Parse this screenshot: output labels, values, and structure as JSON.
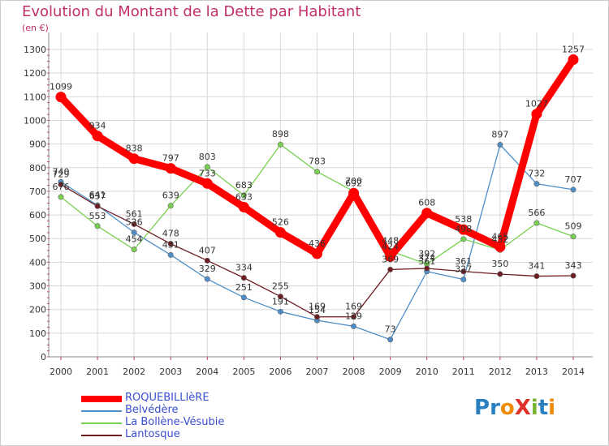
{
  "title": "Evolution du Montant de la Dette par Habitant",
  "unit_label": "(en €)",
  "logo": {
    "text": "ProXiti",
    "letters": [
      "P",
      "r",
      "o",
      "X",
      "i",
      "t",
      "i"
    ],
    "colors": [
      "#2a7fc0",
      "#2a7fc0",
      "#f08a00",
      "#e0302a",
      "#7ab32e",
      "#2a7fc0",
      "#f08a00"
    ]
  },
  "chart_data": {
    "type": "line",
    "title": "Evolution du Montant de la Dette par Habitant",
    "ylabel": "(en €)",
    "xlabel": "",
    "x": [
      "2000",
      "2001",
      "2002",
      "2003",
      "2004",
      "2005",
      "2006",
      "2007",
      "2008",
      "2009",
      "2010",
      "2011",
      "2012",
      "2013",
      "2014"
    ],
    "y_ticks": [
      "0",
      "100",
      "200",
      "300",
      "400",
      "500",
      "600",
      "700",
      "800",
      "900",
      "1000",
      "1100",
      "1200",
      "1300"
    ],
    "ylim": [
      0,
      1300
    ],
    "grid": true,
    "legend_position": "bottom-left",
    "series": [
      {
        "name": "ROQUEBILLIèRE",
        "color": "#ff0000",
        "values": [
          1099,
          934,
          838,
          797,
          733,
          633,
          526,
          436,
          692,
          424,
          608,
          538,
          465,
          1027,
          1257
        ],
        "labels": [
          "1099",
          "934",
          "838",
          "797",
          "733",
          "633",
          "526",
          "436",
          "692",
          "424",
          "608",
          "538",
          "465",
          "1027",
          "1257"
        ]
      },
      {
        "name": "Belvédère",
        "color": "#4d8ec8",
        "values": [
          740,
          641,
          526,
          431,
          329,
          251,
          191,
          154,
          129,
          73,
          361,
          327,
          897,
          732,
          707
        ],
        "labels": [
          "740",
          "641",
          "526",
          "431",
          "329",
          "251",
          "191",
          "154",
          "129",
          "73",
          "361",
          "327",
          "897",
          "732",
          "707"
        ]
      },
      {
        "name": "La Bollène-Vésubie",
        "color": "#78d050",
        "values": [
          676,
          553,
          454,
          639,
          803,
          683,
          898,
          783,
          700,
          448,
          392,
          498,
          452,
          566,
          509
        ],
        "labels": [
          "676",
          "553",
          "454",
          "639",
          "803",
          "683",
          "898",
          "783",
          "700",
          "448",
          "392",
          "498",
          "452",
          "566",
          "509"
        ]
      },
      {
        "name": "Lantosque",
        "color": "#6e1c22",
        "values": [
          729,
          637,
          561,
          478,
          407,
          334,
          255,
          169,
          169,
          369,
          374,
          361,
          350,
          341,
          343
        ],
        "labels": [
          "729",
          "637",
          "561",
          "478",
          "407",
          "334",
          "255",
          "169",
          "169",
          "369",
          "374",
          "361",
          "350",
          "341",
          "343"
        ]
      }
    ]
  }
}
